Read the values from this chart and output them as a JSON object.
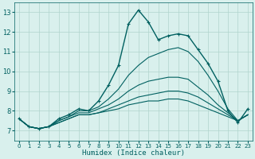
{
  "xlabel": "Humidex (Indice chaleur)",
  "ylabel": "",
  "xlim": [
    -0.5,
    23.5
  ],
  "ylim": [
    6.5,
    13.5
  ],
  "yticks": [
    7,
    8,
    9,
    10,
    11,
    12,
    13
  ],
  "xticks": [
    0,
    1,
    2,
    3,
    4,
    5,
    6,
    7,
    8,
    9,
    10,
    11,
    12,
    13,
    14,
    15,
    16,
    17,
    18,
    19,
    20,
    21,
    22,
    23
  ],
  "bg_color": "#d9f0ed",
  "grid_color": "#b0d4cc",
  "line_color": "#006060",
  "lines": [
    {
      "x": [
        0,
        1,
        2,
        3,
        4,
        5,
        6,
        7,
        8,
        9,
        10,
        11,
        12,
        13,
        14,
        15,
        16,
        17,
        18,
        19,
        20,
        21,
        22,
        23
      ],
      "y": [
        7.6,
        7.2,
        7.1,
        7.2,
        7.6,
        7.8,
        8.1,
        8.0,
        8.5,
        9.3,
        10.3,
        12.4,
        13.1,
        12.5,
        11.6,
        11.8,
        11.9,
        11.8,
        11.1,
        10.4,
        9.5,
        8.0,
        7.4,
        8.1
      ],
      "marker": "+",
      "lw": 1.0
    },
    {
      "x": [
        0,
        1,
        2,
        3,
        4,
        5,
        6,
        7,
        8,
        9,
        10,
        11,
        12,
        13,
        14,
        15,
        16,
        17,
        18,
        19,
        20,
        21,
        22,
        23
      ],
      "y": [
        7.6,
        7.2,
        7.1,
        7.2,
        7.5,
        7.7,
        8.0,
        8.0,
        8.2,
        8.6,
        9.1,
        9.8,
        10.3,
        10.7,
        10.9,
        11.1,
        11.2,
        11.0,
        10.5,
        9.8,
        9.0,
        8.1,
        7.5,
        7.8
      ],
      "marker": null,
      "lw": 0.8
    },
    {
      "x": [
        0,
        1,
        2,
        3,
        4,
        5,
        6,
        7,
        8,
        9,
        10,
        11,
        12,
        13,
        14,
        15,
        16,
        17,
        18,
        19,
        20,
        21,
        22,
        23
      ],
      "y": [
        7.6,
        7.2,
        7.1,
        7.2,
        7.5,
        7.7,
        7.9,
        7.9,
        8.1,
        8.3,
        8.6,
        9.0,
        9.3,
        9.5,
        9.6,
        9.7,
        9.7,
        9.6,
        9.2,
        8.8,
        8.3,
        7.9,
        7.5,
        7.8
      ],
      "marker": null,
      "lw": 0.8
    },
    {
      "x": [
        0,
        1,
        2,
        3,
        4,
        5,
        6,
        7,
        8,
        9,
        10,
        11,
        12,
        13,
        14,
        15,
        16,
        17,
        18,
        19,
        20,
        21,
        22,
        23
      ],
      "y": [
        7.6,
        7.2,
        7.1,
        7.2,
        7.4,
        7.6,
        7.8,
        7.8,
        7.9,
        8.1,
        8.3,
        8.5,
        8.7,
        8.8,
        8.9,
        9.0,
        9.0,
        8.9,
        8.7,
        8.4,
        8.1,
        7.8,
        7.5,
        7.8
      ],
      "marker": null,
      "lw": 0.8
    },
    {
      "x": [
        0,
        1,
        2,
        3,
        4,
        5,
        6,
        7,
        8,
        9,
        10,
        11,
        12,
        13,
        14,
        15,
        16,
        17,
        18,
        19,
        20,
        21,
        22,
        23
      ],
      "y": [
        7.6,
        7.2,
        7.1,
        7.2,
        7.4,
        7.6,
        7.8,
        7.8,
        7.9,
        8.0,
        8.1,
        8.3,
        8.4,
        8.5,
        8.5,
        8.6,
        8.6,
        8.5,
        8.3,
        8.1,
        7.9,
        7.7,
        7.5,
        7.8
      ],
      "marker": null,
      "lw": 0.8
    }
  ]
}
